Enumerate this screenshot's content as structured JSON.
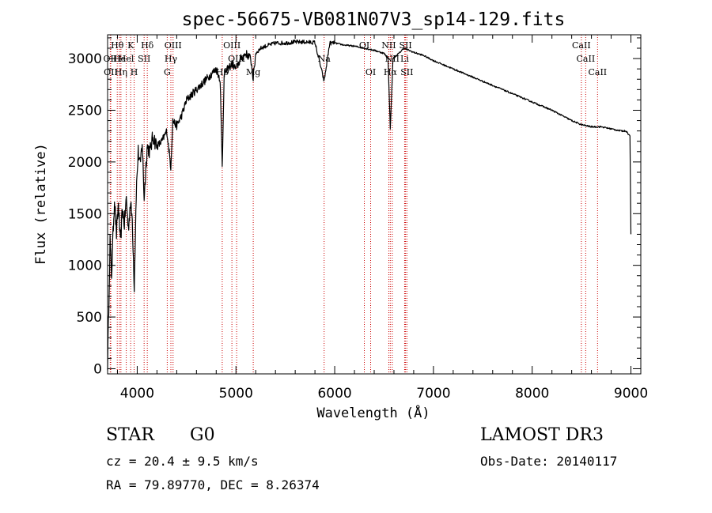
{
  "chart_data": {
    "type": "line",
    "title": "spec-56675-VB081N07V3_sp14-129.fits",
    "xlabel": "Wavelength (Å)",
    "ylabel": "Flux (relative)",
    "xlim": [
      3700,
      9100
    ],
    "ylim": [
      -50,
      3230
    ],
    "x_ticks": [
      4000,
      5000,
      6000,
      7000,
      8000,
      9000
    ],
    "y_ticks": [
      0,
      500,
      1000,
      1500,
      2000,
      2500,
      3000
    ],
    "x_tick_labels": [
      "4000",
      "5000",
      "6000",
      "7000",
      "8000",
      "9000"
    ],
    "y_tick_labels": [
      "0",
      "500",
      "1000",
      "1500",
      "2000",
      "2500",
      "3000"
    ],
    "series": [
      {
        "name": "flux",
        "x": [
          3700,
          3712,
          3725,
          3740,
          3755,
          3770,
          3790,
          3810,
          3830,
          3850,
          3870,
          3890,
          3910,
          3930,
          3950,
          3970,
          3990,
          4010,
          4030,
          4050,
          4070,
          4100,
          4130,
          4160,
          4200,
          4250,
          4300,
          4340,
          4360,
          4400,
          4450,
          4500,
          4550,
          4600,
          4650,
          4700,
          4750,
          4800,
          4840,
          4861,
          4880,
          4920,
          4960,
          5000,
          5050,
          5100,
          5150,
          5175,
          5200,
          5250,
          5300,
          5400,
          5500,
          5600,
          5700,
          5800,
          5893,
          5950,
          6000,
          6100,
          6200,
          6300,
          6400,
          6500,
          6540,
          6563,
          6590,
          6650,
          6700,
          6800,
          6900,
          7000,
          7100,
          7200,
          7300,
          7400,
          7500,
          7600,
          7700,
          7800,
          7900,
          8000,
          8100,
          8200,
          8300,
          8400,
          8500,
          8600,
          8700,
          8800,
          8900,
          8950,
          8990,
          9000
        ],
        "y": [
          50,
          600,
          1250,
          900,
          1300,
          1650,
          1300,
          1600,
          1200,
          1550,
          1400,
          1650,
          1350,
          1600,
          1450,
          800,
          1700,
          2100,
          1950,
          2200,
          1650,
          2150,
          2100,
          2250,
          2150,
          2200,
          2300,
          1950,
          2400,
          2350,
          2450,
          2600,
          2650,
          2700,
          2750,
          2800,
          2850,
          2900,
          2800,
          1950,
          2850,
          2900,
          2950,
          2900,
          3000,
          3050,
          3000,
          2800,
          3050,
          3100,
          3120,
          3150,
          3150,
          3160,
          3160,
          3155,
          2780,
          3150,
          3150,
          3130,
          3120,
          3100,
          3080,
          3050,
          3000,
          2320,
          3000,
          3050,
          3100,
          3060,
          3030,
          2980,
          2940,
          2900,
          2860,
          2820,
          2780,
          2740,
          2700,
          2660,
          2620,
          2580,
          2540,
          2500,
          2450,
          2400,
          2360,
          2340,
          2340,
          2320,
          2300,
          2300,
          2250,
          1300
        ]
      }
    ],
    "spectral_lines": [
      {
        "label": "Hθ",
        "wl": 3798,
        "row": 1
      },
      {
        "label": "OII",
        "wl": 3727,
        "row": 2
      },
      {
        "label": "OII",
        "wl": 3732,
        "row": 3
      },
      {
        "label": "He",
        "wl": 3820,
        "row": 2
      },
      {
        "label": "Hη",
        "wl": 3835,
        "row": 3
      },
      {
        "label": "K",
        "wl": 3934,
        "row": 1
      },
      {
        "label": "Hel",
        "wl": 3889,
        "row": 2
      },
      {
        "label": "SII",
        "wl": 4070,
        "row": 2
      },
      {
        "label": "H",
        "wl": 3969,
        "row": 3
      },
      {
        "label": "Hδ",
        "wl": 4102,
        "row": 1
      },
      {
        "label": "OIII",
        "wl": 4363,
        "row": 1
      },
      {
        "label": "Hγ",
        "wl": 4341,
        "row": 2
      },
      {
        "label": "G",
        "wl": 4304,
        "row": 3
      },
      {
        "label": "OIII",
        "wl": 4959,
        "row": 1
      },
      {
        "label": "OIII",
        "wl": 5007,
        "row": 2
      },
      {
        "label": "Hβ",
        "wl": 4861,
        "row": 3
      },
      {
        "label": "Mg",
        "wl": 5175,
        "row": 3
      },
      {
        "label": "Na",
        "wl": 5893,
        "row": 2
      },
      {
        "label": "OI",
        "wl": 6300,
        "row": 1
      },
      {
        "label": "OI",
        "wl": 6364,
        "row": 3
      },
      {
        "label": "NII",
        "wl": 6548,
        "row": 1
      },
      {
        "label": "SII",
        "wl": 6717,
        "row": 1
      },
      {
        "label": "NII",
        "wl": 6583,
        "row": 2
      },
      {
        "label": "Li",
        "wl": 6708,
        "row": 2
      },
      {
        "label": "Hα",
        "wl": 6563,
        "row": 3
      },
      {
        "label": "SII",
        "wl": 6731,
        "row": 3
      },
      {
        "label": "CaII",
        "wl": 8498,
        "row": 1
      },
      {
        "label": "CaII",
        "wl": 8542,
        "row": 2
      },
      {
        "label": "CaII",
        "wl": 8662,
        "row": 3
      }
    ]
  },
  "info": {
    "object_class": "STAR",
    "subclass": "G0",
    "survey": "LAMOST DR3",
    "cz": "cz = 20.4 ± 9.5 km/s",
    "obs_date": "Obs-Date: 20140117",
    "coords": "RA =  79.89770, DEC =   8.26374"
  },
  "colors": {
    "line": "#000000",
    "marker": "#cc0000",
    "background": "#ffffff"
  }
}
